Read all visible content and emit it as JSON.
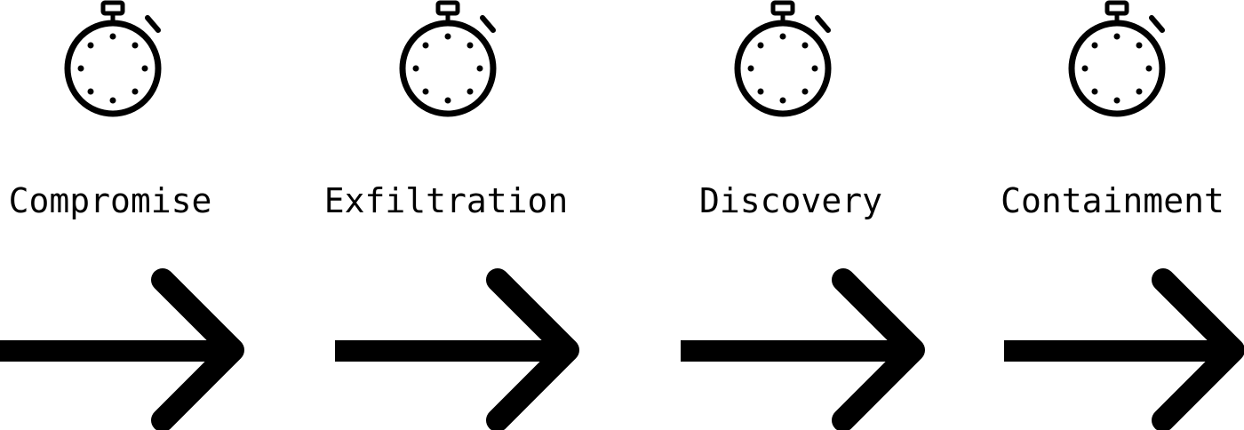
{
  "diagram": {
    "colors": {
      "stroke": "#000000",
      "background": "#ffffff"
    },
    "stages": [
      {
        "label": "Compromise",
        "icon": "stopwatch-icon",
        "connector": "arrow-right-icon"
      },
      {
        "label": "Exfiltration",
        "icon": "stopwatch-icon",
        "connector": "arrow-right-icon"
      },
      {
        "label": "Discovery",
        "icon": "stopwatch-icon",
        "connector": "arrow-right-icon"
      },
      {
        "label": "Containment",
        "icon": "stopwatch-icon",
        "connector": "arrow-right-icon"
      }
    ]
  }
}
